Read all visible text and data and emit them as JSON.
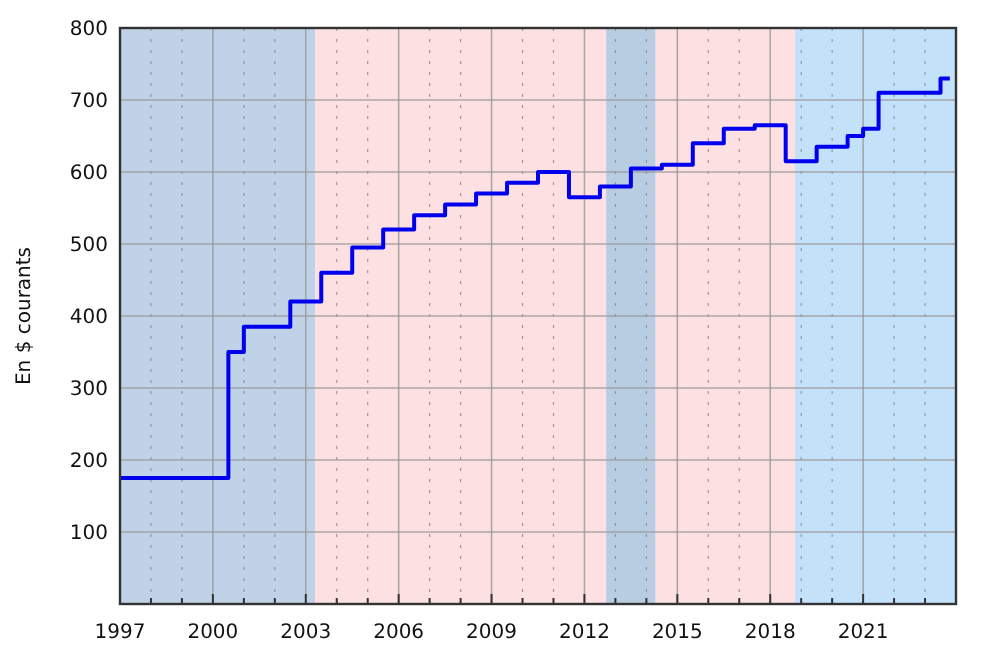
{
  "chart_data": {
    "type": "step",
    "ylabel": "En $ courants",
    "x": [
      1997,
      2000.5,
      2001,
      2002.5,
      2003.5,
      2004.5,
      2005.5,
      2006.5,
      2007.5,
      2008.5,
      2009.5,
      2010.5,
      2011.5,
      2012.5,
      2013.5,
      2014.5,
      2015.5,
      2016.5,
      2017.5,
      2018.5,
      2019.5,
      2020.5,
      2021,
      2021.5,
      2023.5,
      2023.8
    ],
    "series": [
      {
        "color": "#0000ee",
        "values": [
          175,
          350,
          385,
          420,
          460,
          495,
          520,
          540,
          555,
          570,
          585,
          600,
          565,
          580,
          605,
          610,
          640,
          660,
          665,
          615,
          635,
          650,
          660,
          710,
          730,
          730
        ]
      }
    ],
    "xlim": [
      1997,
      2024
    ],
    "xticks": [
      1997,
      {
        "value": 1998,
        "label": null
      },
      {
        "value": 1999,
        "label": null
      },
      2000,
      {
        "value": 2001,
        "label": null
      },
      {
        "value": 2002,
        "label": null
      },
      2003,
      {
        "value": 2004,
        "label": null
      },
      {
        "value": 2005,
        "label": null
      },
      2006,
      {
        "value": 2007,
        "label": null
      },
      {
        "value": 2008,
        "label": null
      },
      2009,
      {
        "value": 2010,
        "label": null
      },
      {
        "value": 2011,
        "label": null
      },
      2012,
      {
        "value": 2013,
        "label": null
      },
      {
        "value": 2014,
        "label": null
      },
      2015,
      {
        "value": 2016,
        "label": null
      },
      {
        "value": 2017,
        "label": null
      },
      2018,
      {
        "value": 2019,
        "label": null
      },
      {
        "value": 2020,
        "label": null
      },
      2021,
      {
        "value": 2022,
        "label": null
      },
      {
        "value": 2023,
        "label": null
      }
    ],
    "ylim": [
      0,
      800
    ],
    "yticks": [
      100,
      200,
      300,
      400,
      500,
      600,
      700,
      800
    ],
    "grid": true,
    "bands": [
      {
        "axis": "x",
        "from": 1997,
        "to": 2003.3,
        "color": "#bfd2e8"
      },
      {
        "axis": "x",
        "from": 2003.3,
        "to": 2012.7,
        "color": "#fde0e1"
      },
      {
        "axis": "x",
        "from": 2012.7,
        "to": 2014.3,
        "color": "#b9cde2"
      },
      {
        "axis": "x",
        "from": 2014.3,
        "to": 2018.8,
        "color": "#fde0e1"
      },
      {
        "axis": "x",
        "from": 2018.8,
        "to": 2024,
        "color": "#c4e1fa"
      }
    ]
  }
}
